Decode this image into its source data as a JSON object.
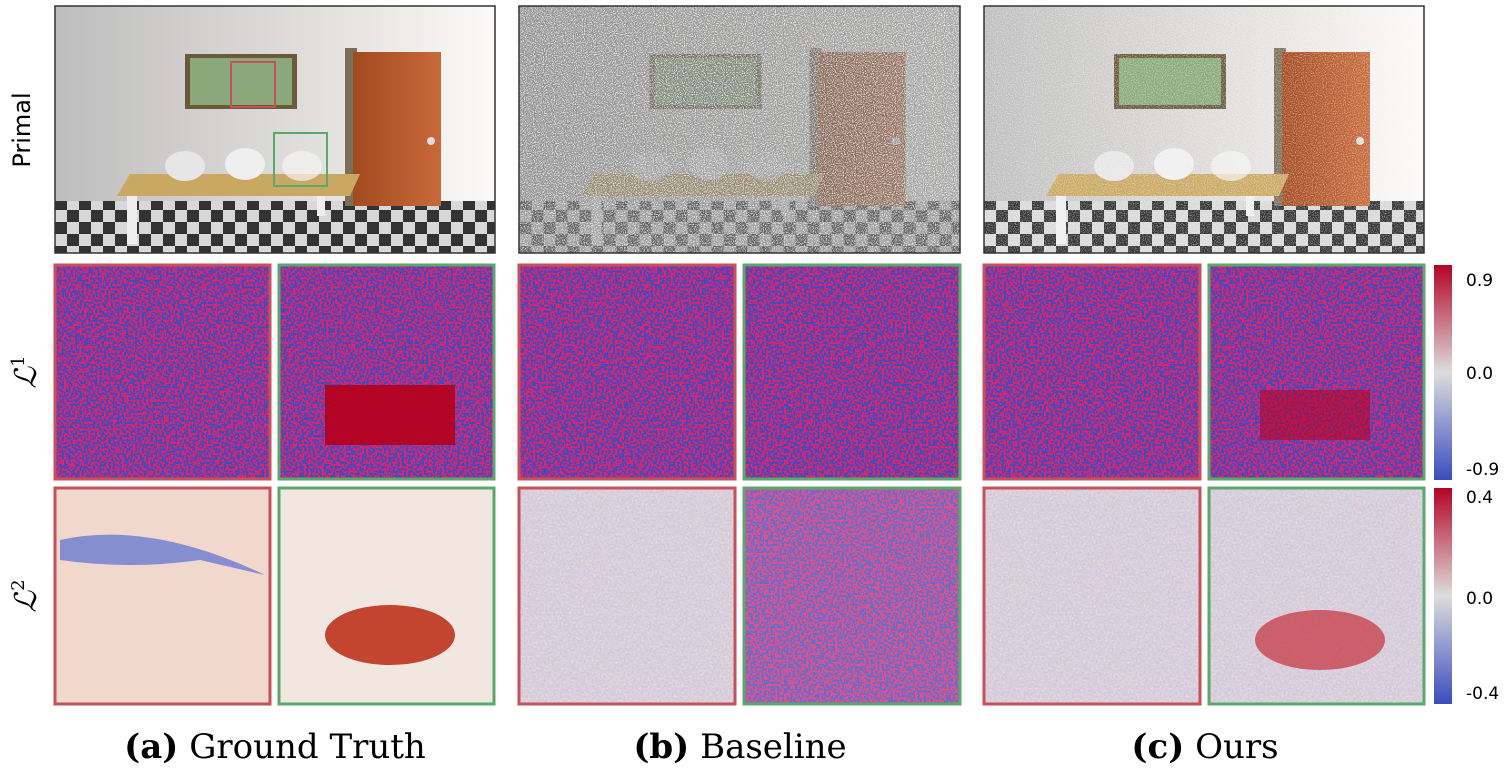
{
  "row_labels": {
    "primal": "Primal",
    "l1": {
      "base": "ℒ",
      "sup": "1"
    },
    "l2": {
      "base": "ℒ",
      "sup": "2"
    }
  },
  "columns": [
    {
      "tag": "(a)",
      "text": "Ground Truth"
    },
    {
      "tag": "(b)",
      "text": "Baseline"
    },
    {
      "tag": "(c)",
      "text": "Ours"
    }
  ],
  "colorbars": [
    {
      "ticks": [
        "0.9",
        "0.0",
        "-0.9"
      ]
    },
    {
      "ticks": [
        "0.4",
        "0.0",
        "-0.4"
      ]
    }
  ]
}
